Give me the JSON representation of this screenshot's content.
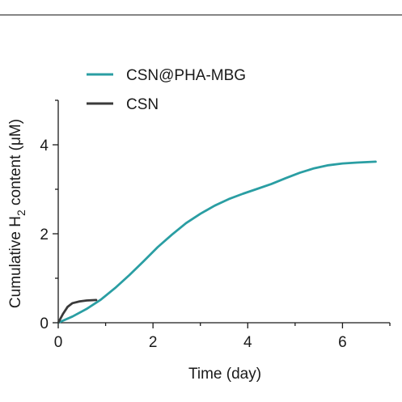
{
  "chart_data": {
    "type": "line",
    "xlabel": "Time (day)",
    "ylabel_parts": [
      "Cumulative H",
      "2",
      " content (μM)"
    ],
    "xlim": [
      0,
      7
    ],
    "ylim": [
      0,
      5
    ],
    "xticks": [
      0,
      2,
      4,
      6
    ],
    "yticks": [
      0,
      2,
      4
    ],
    "grid": false,
    "legend_position": "top-left",
    "series": [
      {
        "name": "CSN@PHA-MBG",
        "color": "#2a9ea3",
        "x": [
          0,
          0.3,
          0.6,
          0.9,
          1.2,
          1.5,
          1.8,
          2.1,
          2.4,
          2.7,
          3.0,
          3.3,
          3.6,
          3.9,
          4.2,
          4.5,
          4.8,
          5.1,
          5.4,
          5.7,
          6.0,
          6.3,
          6.7
        ],
        "values": [
          0,
          0.14,
          0.31,
          0.52,
          0.78,
          1.07,
          1.38,
          1.7,
          1.98,
          2.24,
          2.45,
          2.63,
          2.78,
          2.9,
          3.01,
          3.12,
          3.25,
          3.37,
          3.47,
          3.54,
          3.58,
          3.6,
          3.62
        ]
      },
      {
        "name": "CSN",
        "color": "#3a3a3a",
        "x": [
          0,
          0.1,
          0.2,
          0.3,
          0.45,
          0.6,
          0.8
        ],
        "values": [
          0,
          0.2,
          0.36,
          0.44,
          0.48,
          0.5,
          0.51
        ]
      }
    ]
  }
}
